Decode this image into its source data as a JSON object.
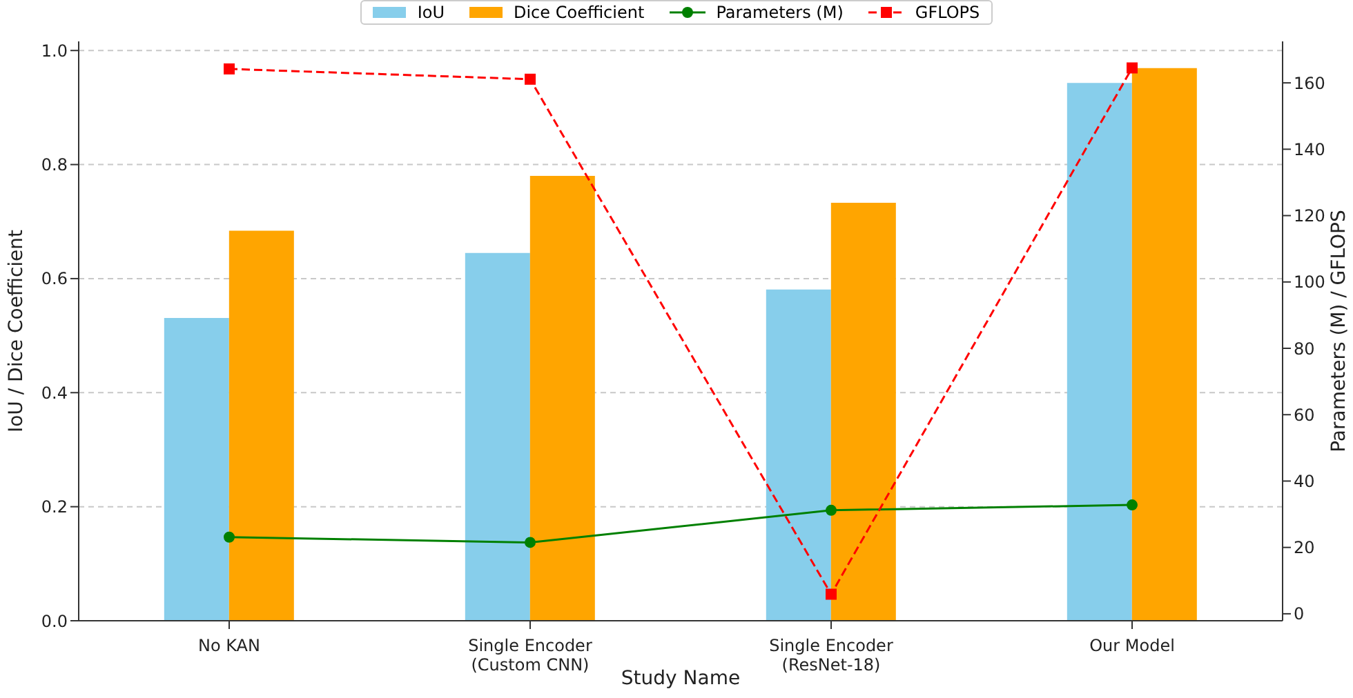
{
  "chart_data": {
    "type": "bar",
    "xlabel": "Study Name",
    "ylabel": "IoU / Dice Coefficient",
    "y2label": "Parameters (M) / GFLOPS",
    "categories": [
      "No KAN",
      "Single Encoder\n(Custom CNN)",
      "Single Encoder\n(ResNet-18)",
      "Our Model"
    ],
    "series": [
      {
        "name": "IoU",
        "color": "#87ceeb",
        "values": [
          0.531,
          0.645,
          0.581,
          0.943
        ]
      },
      {
        "name": "Dice Coefficient",
        "color": "#ffa500",
        "values": [
          0.684,
          0.78,
          0.733,
          0.969
        ]
      },
      {
        "name": "Parameters (M)",
        "type": "line",
        "axis": "y2",
        "color": "#008000",
        "marker": "circle",
        "line_style": "solid",
        "values": [
          23.1,
          21.5,
          31.2,
          32.8
        ]
      },
      {
        "name": "GFLOPS",
        "type": "line",
        "axis": "y2",
        "color": "#ff0000",
        "marker": "square",
        "line_style": "dashed",
        "values": [
          164.2,
          161.1,
          5.9,
          164.5
        ]
      }
    ],
    "ylim": [
      0,
      1.016
    ],
    "yticks": [
      {
        "value": 0,
        "label": "0.0"
      },
      0.2,
      0.4,
      0.6,
      0.8,
      {
        "value": 1,
        "label": "1.0"
      }
    ],
    "y2lim": [
      -2.1,
      172.5
    ],
    "y2ticks": [
      0,
      20,
      40,
      60,
      80,
      100,
      120,
      140,
      160
    ],
    "grid": "y",
    "legend": "top"
  }
}
